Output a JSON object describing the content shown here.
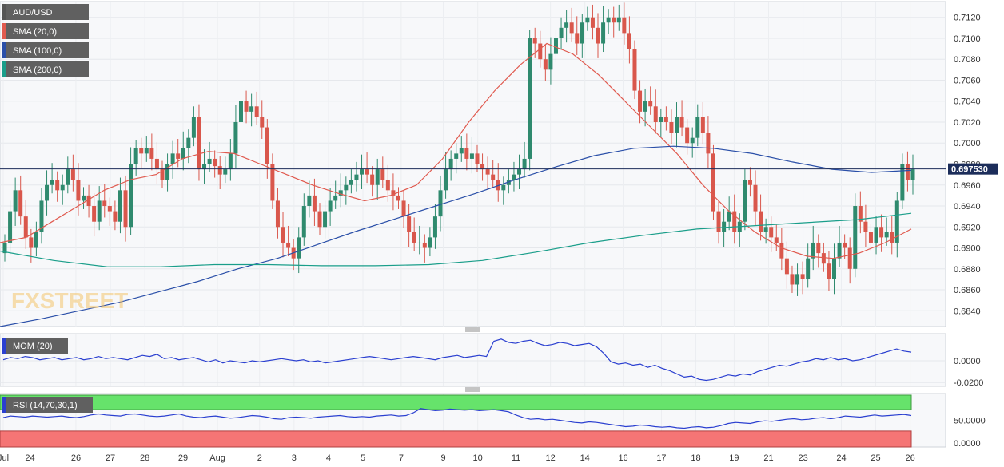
{
  "chart_data": [
    {
      "type": "candlestick",
      "panel": "price",
      "legend": [
        {
          "label": "AUD/USD",
          "color": "#555555"
        },
        {
          "label": "SMA (20,0)",
          "color": "#e05a4f"
        },
        {
          "label": "SMA (100,0)",
          "color": "#2a4fa8"
        },
        {
          "label": "SMA (200,0)",
          "color": "#1a9e8a"
        }
      ],
      "ylim": [
        0.6825,
        0.7135
      ],
      "y_ticks": [
        "0.7120",
        "0.7100",
        "0.7080",
        "0.7060",
        "0.7040",
        "0.7020",
        "0.7000",
        "0.6980",
        "0.6960",
        "0.6940",
        "0.6920",
        "0.6900",
        "0.6880",
        "0.6860",
        "0.6840"
      ],
      "last_price_label": "0.697530",
      "last_price": 0.69753,
      "x_labels": [
        {
          "label": "Jul",
          "x": 0
        },
        {
          "label": "24",
          "x": 7
        },
        {
          "label": "26",
          "x": 19
        },
        {
          "label": "27",
          "x": 28
        },
        {
          "label": "28",
          "x": 37
        },
        {
          "label": "29",
          "x": 47
        },
        {
          "label": "Aug",
          "x": 56
        },
        {
          "label": "2",
          "x": 67
        },
        {
          "label": "3",
          "x": 76
        },
        {
          "label": "4",
          "x": 85
        },
        {
          "label": "5",
          "x": 94
        },
        {
          "label": "7",
          "x": 104
        },
        {
          "label": "9",
          "x": 115
        },
        {
          "label": "10",
          "x": 124
        },
        {
          "label": "11",
          "x": 134
        },
        {
          "label": "12",
          "x": 143
        },
        {
          "label": "14",
          "x": 152
        },
        {
          "label": "16",
          "x": 162
        },
        {
          "label": "17",
          "x": 172
        },
        {
          "label": "18",
          "x": 181
        },
        {
          "label": "19",
          "x": 191
        },
        {
          "label": "21",
          "x": 200
        },
        {
          "label": "23",
          "x": 209
        },
        {
          "label": "24",
          "x": 219
        },
        {
          "label": "25",
          "x": 228
        },
        {
          "label": "26",
          "x": 237
        }
      ],
      "ohlc_close": [
        0.6905,
        0.6935,
        0.6955,
        0.693,
        0.691,
        0.69,
        0.6915,
        0.6945,
        0.696,
        0.6965,
        0.6955,
        0.696,
        0.6975,
        0.6965,
        0.6945,
        0.695,
        0.694,
        0.6925,
        0.6945,
        0.694,
        0.6935,
        0.6925,
        0.6955,
        0.692,
        0.698,
        0.6995,
        0.699,
        0.6995,
        0.6985,
        0.6975,
        0.6965,
        0.698,
        0.699,
        0.6985,
        0.6995,
        0.7005,
        0.7025,
        0.6975,
        0.698,
        0.6985,
        0.6978,
        0.697,
        0.6975,
        0.699,
        0.702,
        0.704,
        0.703,
        0.7035,
        0.7025,
        0.7015,
        0.698,
        0.6945,
        0.692,
        0.6905,
        0.69,
        0.689,
        0.691,
        0.694,
        0.695,
        0.6935,
        0.692,
        0.6935,
        0.6945,
        0.695,
        0.6955,
        0.696,
        0.6965,
        0.697,
        0.6975,
        0.697,
        0.696,
        0.6975,
        0.6965,
        0.6955,
        0.695,
        0.6945,
        0.693,
        0.6915,
        0.6905,
        0.6905,
        0.69,
        0.691,
        0.693,
        0.6955,
        0.6975,
        0.6985,
        0.699,
        0.6995,
        0.6985,
        0.699,
        0.698,
        0.6975,
        0.697,
        0.6965,
        0.6955,
        0.696,
        0.6965,
        0.697,
        0.6975,
        0.6985,
        0.71,
        0.7095,
        0.708,
        0.707,
        0.7085,
        0.71,
        0.711,
        0.7115,
        0.7105,
        0.7095,
        0.7115,
        0.712,
        0.711,
        0.7095,
        0.7115,
        0.712,
        0.7115,
        0.712,
        0.7105,
        0.709,
        0.705,
        0.703,
        0.704,
        0.7035,
        0.702,
        0.7025,
        0.702,
        0.701,
        0.7025,
        0.7015,
        0.7,
        0.7005,
        0.7025,
        0.701,
        0.699,
        0.6935,
        0.6915,
        0.6925,
        0.6935,
        0.6915,
        0.6925,
        0.6965,
        0.696,
        0.6935,
        0.6915,
        0.692,
        0.691,
        0.6905,
        0.689,
        0.6875,
        0.6865,
        0.6875,
        0.687,
        0.689,
        0.6905,
        0.6895,
        0.6885,
        0.687,
        0.689,
        0.6905,
        0.69,
        0.688,
        0.694,
        0.6925,
        0.6915,
        0.6905,
        0.692,
        0.691,
        0.6915,
        0.6905,
        0.6945,
        0.698,
        0.6965,
        0.6975
      ],
      "sma20": [
        0.6905,
        0.691,
        0.6925,
        0.694,
        0.6955,
        0.6965,
        0.697,
        0.6985,
        0.6992,
        0.699,
        0.698,
        0.697,
        0.696,
        0.6952,
        0.6945,
        0.695,
        0.696,
        0.6985,
        0.702,
        0.705,
        0.7075,
        0.7095,
        0.7085,
        0.7065,
        0.704,
        0.7015,
        0.699,
        0.696,
        0.6935,
        0.6915,
        0.69,
        0.6892,
        0.689,
        0.6895,
        0.6905,
        0.6918
      ],
      "sma100": [
        0.6825,
        0.6832,
        0.684,
        0.6848,
        0.6858,
        0.6868,
        0.688,
        0.689,
        0.6903,
        0.6916,
        0.6928,
        0.694,
        0.6952,
        0.6965,
        0.6977,
        0.6988,
        0.6995,
        0.6997,
        0.6995,
        0.699,
        0.6982,
        0.6975,
        0.6972,
        0.6974
      ],
      "sma200": [
        0.6897,
        0.6888,
        0.6882,
        0.6882,
        0.6884,
        0.6884,
        0.6883,
        0.6883,
        0.6884,
        0.6888,
        0.6896,
        0.6905,
        0.6912,
        0.6918,
        0.6921,
        0.6924,
        0.6927,
        0.6933
      ]
    },
    {
      "type": "line",
      "panel": "momentum",
      "legend": "MOM (20)",
      "y_ticks": [
        "0.0000",
        "-0.0200"
      ],
      "ylim": [
        -0.0235,
        0.025
      ],
      "values": [
        0.001,
        0.003,
        0.002,
        0.004,
        0.003,
        0.001,
        0.002,
        0.003,
        0.001,
        0.002,
        0.003,
        0.001,
        0.002,
        0.004,
        0.002,
        0.003,
        0.002,
        0.001,
        0.003,
        0.005,
        0.004,
        0.006,
        0.002,
        0.003,
        0.001,
        0.002,
        0.003,
        0.001,
        -0.001,
        0.001,
        -0.002,
        0.0,
        -0.001,
        -0.002,
        0.0,
        -0.001,
        0.0,
        0.001,
        0.002,
        0.001,
        0.0,
        0.001,
        -0.001,
        0.0,
        -0.002,
        -0.001,
        0.0,
        0.001,
        0.002,
        0.003,
        0.004,
        0.003,
        0.002,
        0.001,
        0.002,
        0.003,
        0.004,
        0.003,
        0.002,
        0.001,
        0.003,
        0.004,
        0.005,
        0.003,
        0.004,
        0.005,
        0.004,
        0.018,
        0.02,
        0.017,
        0.016,
        0.018,
        0.019,
        0.016,
        0.014,
        0.015,
        0.017,
        0.016,
        0.014,
        0.015,
        0.016,
        0.013,
        0.007,
        -0.001,
        -0.003,
        -0.002,
        -0.004,
        -0.003,
        -0.006,
        -0.004,
        -0.007,
        -0.009,
        -0.012,
        -0.015,
        -0.014,
        -0.017,
        -0.018,
        -0.017,
        -0.015,
        -0.013,
        -0.014,
        -0.012,
        -0.013,
        -0.01,
        -0.008,
        -0.006,
        -0.004,
        -0.005,
        -0.003,
        -0.001,
        0.0,
        0.002,
        0.001,
        0.003,
        0.001,
        0.002,
        0.0,
        0.001,
        0.003,
        0.005,
        0.007,
        0.009,
        0.011,
        0.009,
        0.008
      ]
    },
    {
      "type": "line",
      "panel": "rsi",
      "legend": "RSI (14,70,30,1)",
      "y_ticks": [
        "50.0000",
        "0.0000"
      ],
      "ylim": [
        0,
        100
      ],
      "overbought": 70,
      "oversold": 30,
      "values": [
        55,
        58,
        57,
        56,
        58,
        57,
        56,
        57,
        58,
        56,
        55,
        57,
        60,
        62,
        60,
        59,
        58,
        61,
        62,
        60,
        58,
        57,
        58,
        60,
        62,
        58,
        56,
        55,
        57,
        58,
        56,
        54,
        55,
        57,
        59,
        58,
        56,
        53,
        52,
        55,
        56,
        55,
        54,
        56,
        57,
        58,
        59,
        57,
        56,
        57,
        56,
        58,
        59,
        60,
        58,
        59,
        64,
        72,
        70,
        68,
        69,
        71,
        70,
        69,
        70,
        68,
        69,
        70,
        68,
        66,
        60,
        55,
        52,
        53,
        51,
        52,
        50,
        48,
        46,
        45,
        47,
        46,
        44,
        42,
        40,
        38,
        39,
        41,
        40,
        38,
        37,
        38,
        36,
        35,
        37,
        38,
        36,
        37,
        40,
        44,
        46,
        45,
        44,
        47,
        49,
        48,
        50,
        52,
        53,
        51,
        52,
        54,
        55,
        53,
        55,
        58,
        57,
        56,
        58,
        60,
        58,
        59,
        60,
        61,
        59
      ]
    }
  ]
}
